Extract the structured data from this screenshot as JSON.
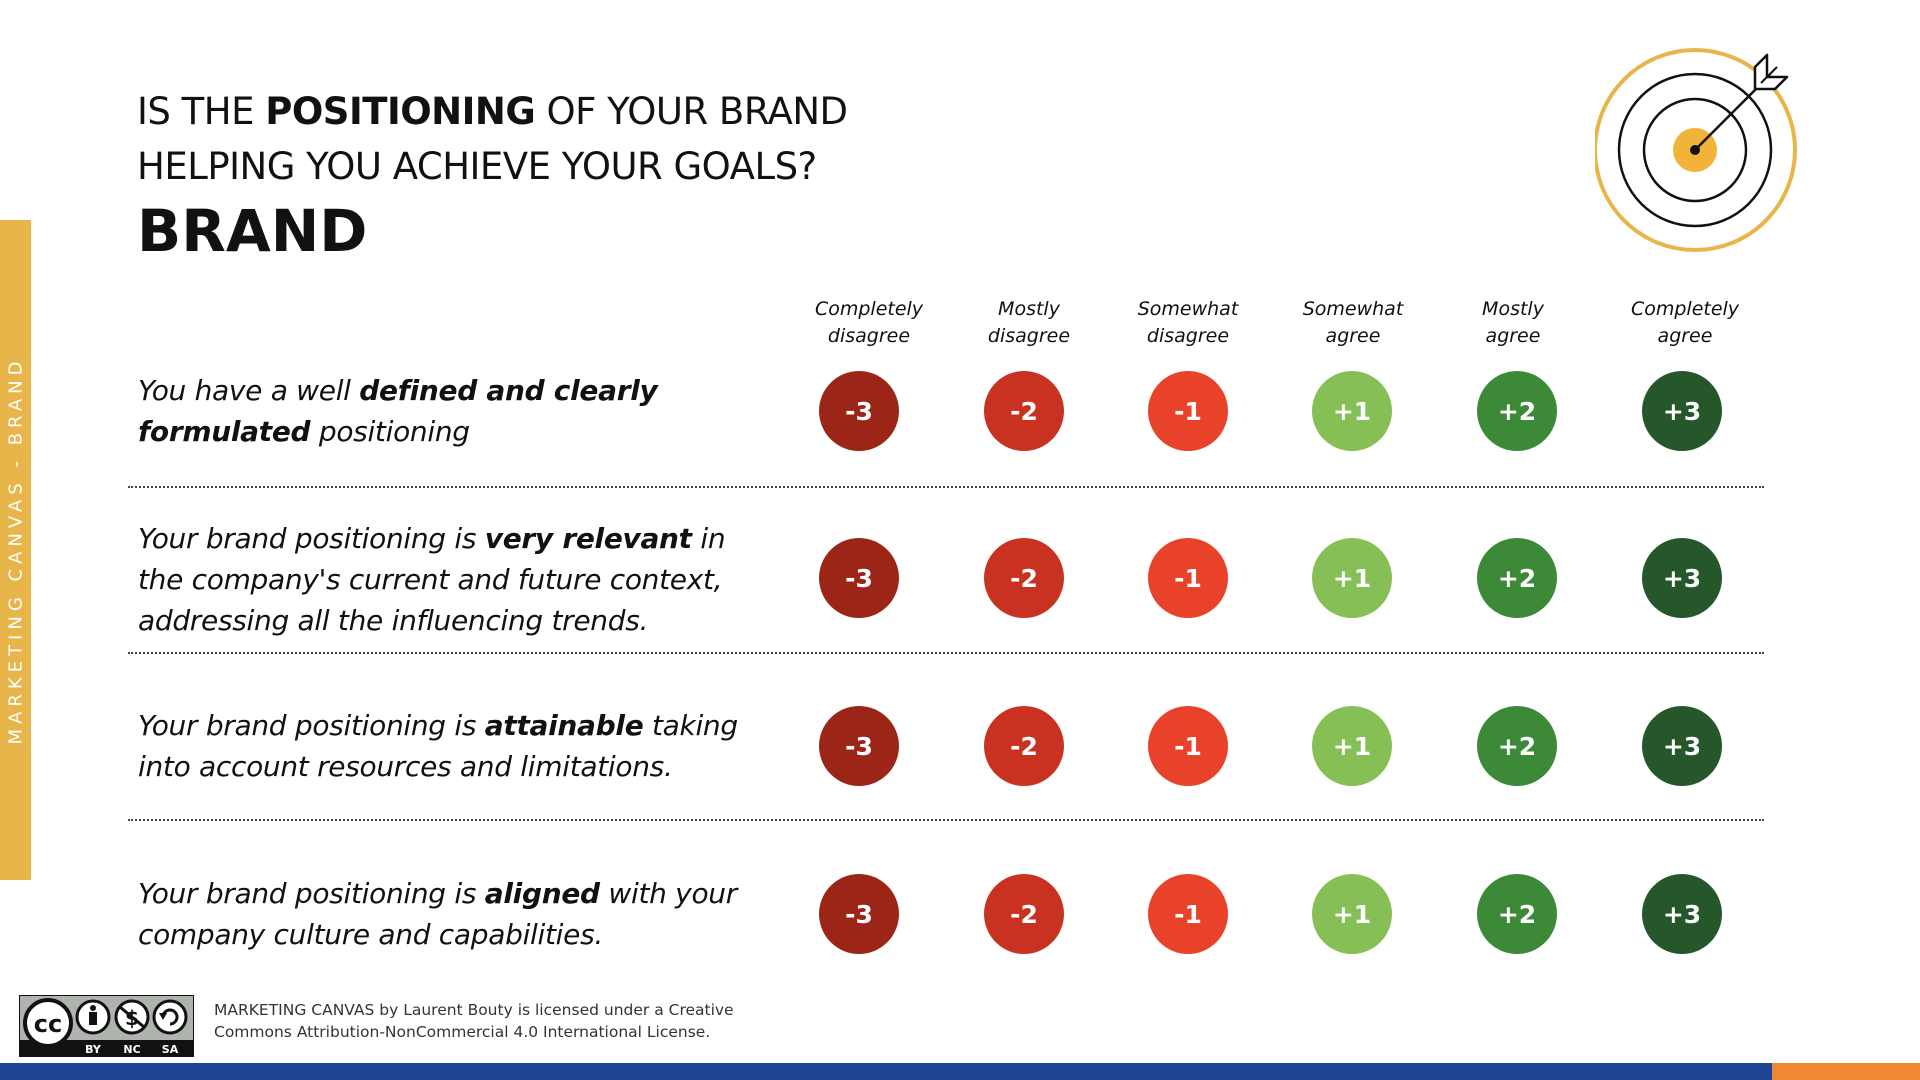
{
  "sidebar": {
    "label": "MARKETING CANVAS - BRAND"
  },
  "title": {
    "line1_pre": "IS THE ",
    "line1_bold": "POSITIONING",
    "line1_post": " OF YOUR BRAND",
    "line2": "HELPING YOU ACHIEVE YOUR GOALS?",
    "subtitle": "BRAND"
  },
  "icon": {
    "name": "target-arrow-icon",
    "ring_color": "#e8b54a",
    "bullseye_color": "#f2b33a"
  },
  "scale": [
    {
      "line1": "Completely",
      "line2": "disagree",
      "value": "-3",
      "color": "#9b2618"
    },
    {
      "line1": "Mostly",
      "line2": "disagree",
      "value": "-2",
      "color": "#c93220"
    },
    {
      "line1": "Somewhat",
      "line2": "disagree",
      "value": "-1",
      "color": "#e8432a"
    },
    {
      "line1": "Somewhat",
      "line2": "agree",
      "value": "+1",
      "color": "#86bf55"
    },
    {
      "line1": "Mostly",
      "line2": "agree",
      "value": "+2",
      "color": "#3c8a37"
    },
    {
      "line1": "Completely",
      "line2": "agree",
      "value": "+3",
      "color": "#25572a"
    }
  ],
  "statements": [
    {
      "l1_a": "You have a well ",
      "l1_b": "defined and clearly",
      "l1_c": "",
      "l2_a": "",
      "l2_b": "formulated",
      "l2_c": " positioning",
      "l3": ""
    },
    {
      "l1_a": "Your brand positioning is ",
      "l1_b": "very relevant",
      "l1_c": " in",
      "l2_a": "the company's current and future context,",
      "l2_b": "",
      "l2_c": "",
      "l3": "addressing all the influencing trends."
    },
    {
      "l1_a": "Your brand positioning is ",
      "l1_b": "attainable",
      "l1_c": " taking",
      "l2_a": "into account resources and limitations.",
      "l2_b": "",
      "l2_c": "",
      "l3": ""
    },
    {
      "l1_a": "Your brand positioning is ",
      "l1_b": "aligned",
      "l1_c": " with your",
      "l2_a": "company culture and capabilities.",
      "l2_b": "",
      "l2_c": "",
      "l3": ""
    }
  ],
  "license": {
    "badge_labels": [
      "BY",
      "NC",
      "SA"
    ],
    "badge_cc": "cc",
    "line1": "MARKETING CANVAS by Laurent Bouty is licensed under a Creative",
    "line2": "Commons Attribution-NonCommercial 4.0 International License."
  },
  "colors": {
    "accent_yellow": "#e8b54a",
    "footer_blue": "#1f4594",
    "footer_orange": "#ee8833"
  }
}
